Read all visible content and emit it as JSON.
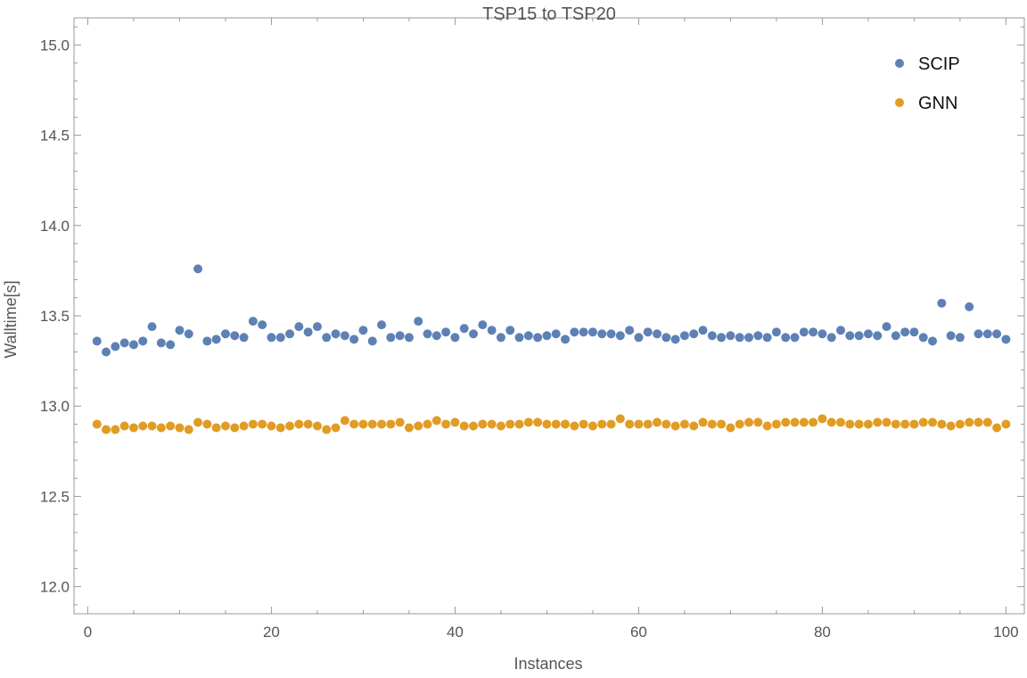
{
  "chart_data": {
    "type": "scatter",
    "title": "TSP15 to TSP20",
    "xlabel": "Instances",
    "ylabel": "Walltime[s]",
    "xlim": [
      -1.5,
      102
    ],
    "ylim": [
      11.85,
      15.15
    ],
    "xticks": [
      0,
      20,
      40,
      60,
      80,
      100
    ],
    "yticks": [
      12.0,
      12.5,
      13.0,
      13.5,
      14.0,
      14.5,
      15.0
    ],
    "ytick_labels": [
      "12.0",
      "12.5",
      "13.0",
      "13.5",
      "14.0",
      "14.5",
      "15.0"
    ],
    "grid": false,
    "legend_position": "top-right",
    "series": [
      {
        "name": "SCIP",
        "color": "#5e81b5",
        "values": [
          13.36,
          13.3,
          13.33,
          13.35,
          13.34,
          13.36,
          13.44,
          13.35,
          13.34,
          13.42,
          13.4,
          13.76,
          13.36,
          13.37,
          13.4,
          13.39,
          13.38,
          13.47,
          13.45,
          13.38,
          13.38,
          13.4,
          13.44,
          13.41,
          13.44,
          13.38,
          13.4,
          13.39,
          13.37,
          13.42,
          13.36,
          13.45,
          13.38,
          13.39,
          13.38,
          13.47,
          13.4,
          13.39,
          13.41,
          13.38,
          13.43,
          13.4,
          13.45,
          13.42,
          13.38,
          13.42,
          13.38,
          13.39,
          13.38,
          13.39,
          13.4,
          13.37,
          13.41,
          13.41,
          13.41,
          13.4,
          13.4,
          13.39,
          13.42,
          13.38,
          13.41,
          13.4,
          13.38,
          13.37,
          13.39,
          13.4,
          13.42,
          13.39,
          13.38,
          13.39,
          13.38,
          13.38,
          13.39,
          13.38,
          13.41,
          13.38,
          13.38,
          13.41,
          13.41,
          13.4,
          13.38,
          13.42,
          13.39,
          13.39,
          13.4,
          13.39,
          13.44,
          13.39,
          13.41,
          13.41,
          13.38,
          13.36,
          13.57,
          13.39,
          13.38,
          13.55,
          13.4,
          13.4,
          13.4,
          13.37
        ]
      },
      {
        "name": "GNN",
        "color": "#e19c24",
        "values": [
          12.9,
          12.87,
          12.87,
          12.89,
          12.88,
          12.89,
          12.89,
          12.88,
          12.89,
          12.88,
          12.87,
          12.91,
          12.9,
          12.88,
          12.89,
          12.88,
          12.89,
          12.9,
          12.9,
          12.89,
          12.88,
          12.89,
          12.9,
          12.9,
          12.89,
          12.87,
          12.88,
          12.92,
          12.9,
          12.9,
          12.9,
          12.9,
          12.9,
          12.91,
          12.88,
          12.89,
          12.9,
          12.92,
          12.9,
          12.91,
          12.89,
          12.89,
          12.9,
          12.9,
          12.89,
          12.9,
          12.9,
          12.91,
          12.91,
          12.9,
          12.9,
          12.9,
          12.89,
          12.9,
          12.89,
          12.9,
          12.9,
          12.93,
          12.9,
          12.9,
          12.9,
          12.91,
          12.9,
          12.89,
          12.9,
          12.89,
          12.91,
          12.9,
          12.9,
          12.88,
          12.9,
          12.91,
          12.91,
          12.89,
          12.9,
          12.91,
          12.91,
          12.91,
          12.91,
          12.93,
          12.91,
          12.91,
          12.9,
          12.9,
          12.9,
          12.91,
          12.91,
          12.9,
          12.9,
          12.9,
          12.91,
          12.91,
          12.9,
          12.89,
          12.9,
          12.91,
          12.91,
          12.91,
          12.88,
          12.9
        ]
      }
    ]
  }
}
